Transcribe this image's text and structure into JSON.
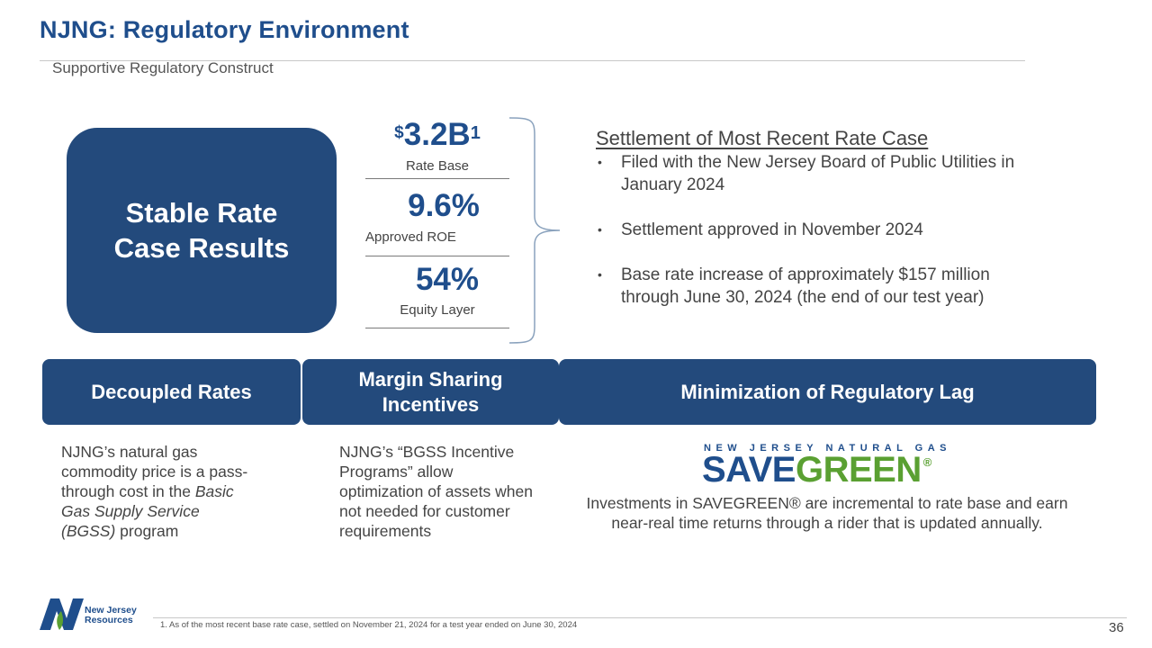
{
  "header": {
    "title": "NJNG: Regulatory Environment",
    "subtitle": "Supportive Regulatory Construct"
  },
  "stable_box": {
    "line1": "Stable Rate",
    "line2": "Case Results"
  },
  "stats": {
    "rate_base": {
      "currency": "$",
      "value": "3.2B",
      "footnote_ref": "1",
      "label": "Rate Base"
    },
    "roe": {
      "value": "9.6%",
      "label": "Approved ROE"
    },
    "equity": {
      "value": "54%",
      "label": "Equity Layer"
    }
  },
  "settlement": {
    "title": "Settlement of Most Recent Rate Case",
    "bullets": [
      "Filed with the New Jersey Board of Public Utilities in January 2024",
      "Settlement approved in November 2024",
      "Base rate increase of approximately $157 million through June 30, 2024 (the end of our test year)"
    ]
  },
  "bands": {
    "decoupled": "Decoupled Rates",
    "margin_line1": "Margin Sharing",
    "margin_line2": "Incentives",
    "lag": "Minimization of Regulatory Lag"
  },
  "decoupled_desc": {
    "part1": "NJNG’s natural gas commodity price is a pass-through cost in the ",
    "italic": "Basic Gas Supply Service (BGSS)",
    "part2": " program"
  },
  "margin_desc": "NJNG’s “BGSS Incentive Programs” allow optimization of assets when not needed for customer requirements",
  "savegreen": {
    "top_line": "NEW JERSEY NATURAL GAS",
    "save": "SAVE",
    "green": "GREEN",
    "reg": "®",
    "description": "Investments in SAVEGREEN® are incremental to rate base and earn near-real time returns through a rider that is updated annually."
  },
  "footer": {
    "logo_line1": "New Jersey",
    "logo_line2": "Resources",
    "footnote": "1.    As of the most recent base rate case, settled on November 21, 2024 for a test year ended on June 30, 2024",
    "page_number": "36"
  },
  "colors": {
    "brand_blue": "#234a7c",
    "title_blue": "#1f4e8c",
    "green": "#5aa032"
  }
}
